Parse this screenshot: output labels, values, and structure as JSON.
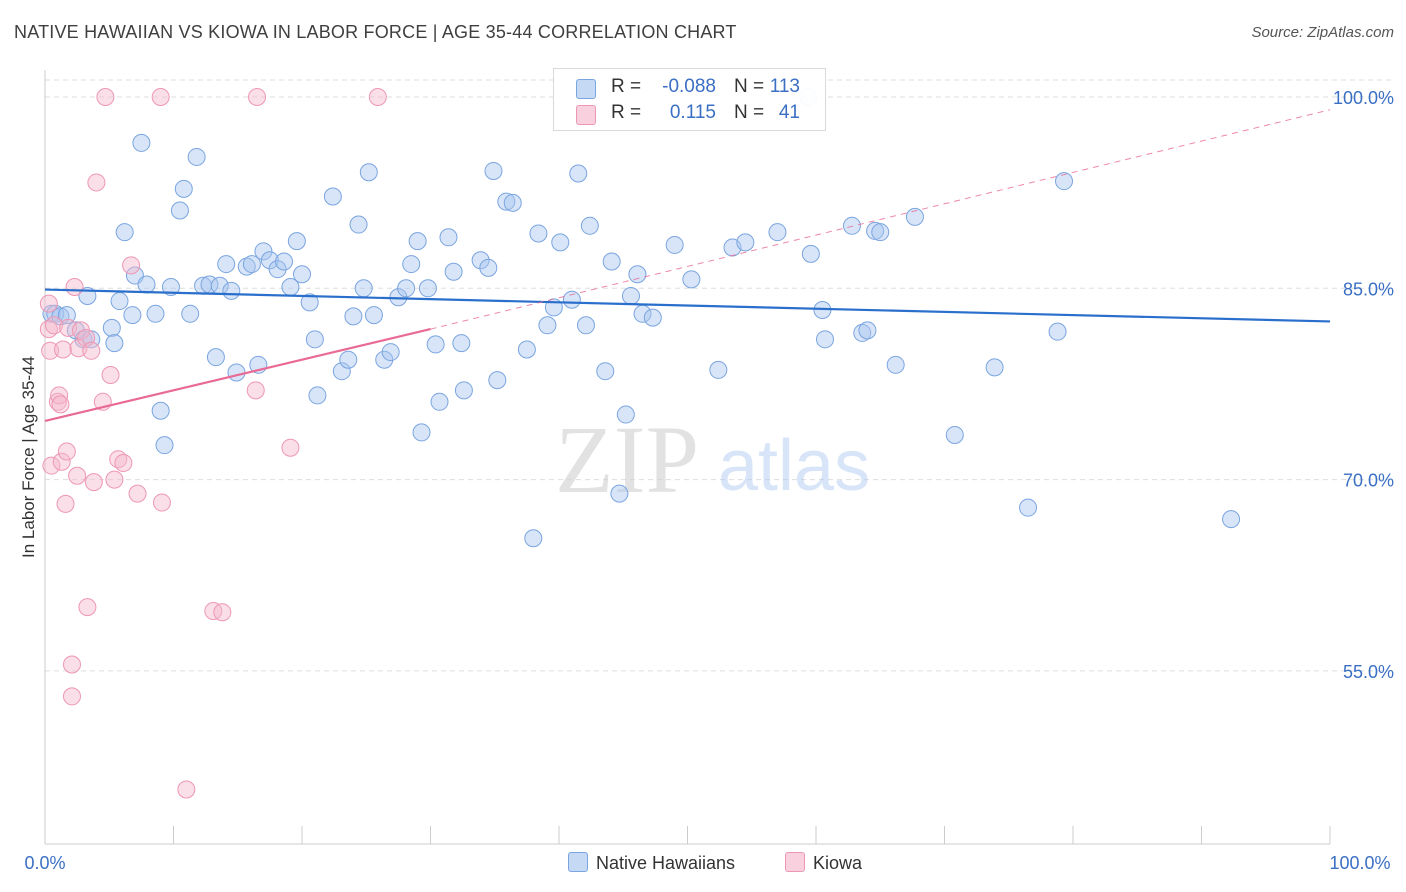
{
  "header": {
    "title": "NATIVE HAWAIIAN VS KIOWA IN LABOR FORCE | AGE 35-44 CORRELATION CHART",
    "source": "Source: ZipAtlas.com"
  },
  "watermark": {
    "zip": "ZIP",
    "atlas": "atlas"
  },
  "legend": {
    "rows": [
      {
        "r_label": "R =",
        "r_value": "-0.088",
        "n_label": "N =",
        "n_value": "113"
      },
      {
        "r_label": "R =",
        "r_value": "0.115",
        "n_label": "N =",
        "n_value": "41"
      }
    ]
  },
  "bottom_legend": {
    "series1": "Native Hawaiians",
    "series2": "Kiowa"
  },
  "colors": {
    "blue_fill": "#a9c6ef",
    "blue_stroke": "#7aa5e0",
    "blue_line": "#2a6fcb",
    "pink_fill": "#f5b8cb",
    "pink_stroke": "#ee97b3",
    "pink_line": "#e96a94",
    "axis_label": "#3a6fc4",
    "grid": "#dddddd"
  },
  "chart_data": {
    "type": "scatter",
    "title": "NATIVE HAWAIIAN VS KIOWA IN LABOR FORCE | AGE 35-44 CORRELATION CHART",
    "xlabel": "",
    "ylabel": "In Labor Force | Age 35-44",
    "xlim": [
      0,
      100
    ],
    "ylim": [
      43,
      101.5
    ],
    "x_tick_labels": [
      "0.0%",
      "100.0%"
    ],
    "y_ticks": [
      100,
      85,
      70,
      55
    ],
    "y_tick_labels": [
      "100.0%",
      "85.0%",
      "70.0%",
      "55.0%"
    ],
    "grid": true,
    "legend_position": "top-center",
    "series": [
      {
        "name": "Native Hawaiians",
        "r": -0.088,
        "n": 113,
        "trend": {
          "x": [
            0,
            100
          ],
          "y": [
            84.9,
            82.4
          ],
          "dashed": false
        },
        "points": [
          [
            0.5,
            83
          ],
          [
            0.8,
            83
          ],
          [
            1.2,
            82.8
          ],
          [
            1.7,
            82.9
          ],
          [
            2.4,
            81.7
          ],
          [
            3,
            81
          ],
          [
            3.3,
            84.4
          ],
          [
            3.6,
            81
          ],
          [
            5.2,
            81.9
          ],
          [
            5.4,
            80.7
          ],
          [
            5.8,
            84
          ],
          [
            6.2,
            89.4
          ],
          [
            6.8,
            82.9
          ],
          [
            7.0,
            86
          ],
          [
            7.5,
            96.4
          ],
          [
            7.9,
            85.3
          ],
          [
            8.6,
            83
          ],
          [
            9.0,
            75.4
          ],
          [
            9.3,
            72.7
          ],
          [
            9.8,
            85.1
          ],
          [
            10.5,
            91.1
          ],
          [
            10.8,
            92.8
          ],
          [
            11.3,
            83
          ],
          [
            11.8,
            95.3
          ],
          [
            12.3,
            85.2
          ],
          [
            12.8,
            85.3
          ],
          [
            13.3,
            79.6
          ],
          [
            13.6,
            85.2
          ],
          [
            14.1,
            86.9
          ],
          [
            14.5,
            84.8
          ],
          [
            14.9,
            78.4
          ],
          [
            15.7,
            86.7
          ],
          [
            16.1,
            86.9
          ],
          [
            16.6,
            79
          ],
          [
            17.0,
            87.9
          ],
          [
            17.5,
            87.2
          ],
          [
            18.1,
            86.5
          ],
          [
            18.6,
            87.1
          ],
          [
            19.1,
            85.1
          ],
          [
            19.6,
            88.7
          ],
          [
            20.0,
            86.1
          ],
          [
            20.6,
            83.9
          ],
          [
            21.0,
            81
          ],
          [
            21.2,
            76.6
          ],
          [
            22.4,
            92.2
          ],
          [
            23.1,
            78.5
          ],
          [
            23.6,
            79.4
          ],
          [
            24.0,
            82.8
          ],
          [
            24.4,
            90
          ],
          [
            24.8,
            85
          ],
          [
            25.2,
            94.1
          ],
          [
            25.6,
            82.9
          ],
          [
            26.4,
            79.4
          ],
          [
            26.9,
            80
          ],
          [
            27.5,
            84.3
          ],
          [
            28.1,
            85
          ],
          [
            28.5,
            86.9
          ],
          [
            29.0,
            88.7
          ],
          [
            29.3,
            73.7
          ],
          [
            29.8,
            85
          ],
          [
            30.4,
            80.6
          ],
          [
            30.7,
            76.1
          ],
          [
            31.4,
            89
          ],
          [
            31.8,
            86.3
          ],
          [
            32.4,
            80.7
          ],
          [
            32.6,
            77
          ],
          [
            33.9,
            87.2
          ],
          [
            34.5,
            86.6
          ],
          [
            34.9,
            94.2
          ],
          [
            35.2,
            77.8
          ],
          [
            35.9,
            91.8
          ],
          [
            36.4,
            91.7
          ],
          [
            37.5,
            80.2
          ],
          [
            38.0,
            65.4
          ],
          [
            38.4,
            89.3
          ],
          [
            39.1,
            82.1
          ],
          [
            39.6,
            83.5
          ],
          [
            40.1,
            88.6
          ],
          [
            41.0,
            84.1
          ],
          [
            41.5,
            94
          ],
          [
            42.1,
            82.1
          ],
          [
            42.4,
            89.9
          ],
          [
            43.6,
            78.5
          ],
          [
            44.1,
            87.1
          ],
          [
            44.7,
            68.9
          ],
          [
            45.2,
            75.1
          ],
          [
            45.6,
            84.4
          ],
          [
            46.1,
            86.1
          ],
          [
            46.5,
            83
          ],
          [
            47.3,
            82.7
          ],
          [
            49.0,
            88.4
          ],
          [
            50.3,
            85.7
          ],
          [
            52.4,
            78.6
          ],
          [
            53.5,
            88.2
          ],
          [
            54.5,
            88.6
          ],
          [
            57.0,
            89.4
          ],
          [
            59.4,
            100
          ],
          [
            59.6,
            87.7
          ],
          [
            60.5,
            83.3
          ],
          [
            60.7,
            81
          ],
          [
            62.8,
            89.9
          ],
          [
            63.6,
            81.5
          ],
          [
            64.0,
            81.7
          ],
          [
            64.6,
            89.5
          ],
          [
            65.0,
            89.4
          ],
          [
            66.2,
            79
          ],
          [
            67.7,
            90.6
          ],
          [
            70.8,
            73.5
          ],
          [
            73.9,
            78.8
          ],
          [
            76.5,
            67.8
          ],
          [
            78.8,
            81.6
          ],
          [
            79.3,
            93.4
          ],
          [
            92.3,
            66.9
          ]
        ]
      },
      {
        "name": "Kiowa",
        "r": 0.115,
        "n": 41,
        "trend": {
          "x": [
            0,
            30
          ],
          "y": [
            74.6,
            81.8
          ],
          "dashed": false
        },
        "trend_extension": {
          "x": [
            30,
            100
          ],
          "y": [
            81.8,
            99
          ],
          "dashed": true
        },
        "points": [
          [
            0.3,
            83.8
          ],
          [
            0.3,
            81.8
          ],
          [
            0.4,
            80.1
          ],
          [
            0.5,
            71.1
          ],
          [
            0.7,
            82.1
          ],
          [
            1.0,
            76.1
          ],
          [
            1.1,
            76.6
          ],
          [
            1.2,
            75.9
          ],
          [
            1.3,
            71.4
          ],
          [
            1.4,
            80.2
          ],
          [
            1.6,
            68.1
          ],
          [
            1.7,
            72.2
          ],
          [
            1.8,
            81.9
          ],
          [
            2.1,
            55.5
          ],
          [
            2.1,
            53
          ],
          [
            2.3,
            85.1
          ],
          [
            2.5,
            70.3
          ],
          [
            2.6,
            80.3
          ],
          [
            2.8,
            81.7
          ],
          [
            3.2,
            81.1
          ],
          [
            3.3,
            60
          ],
          [
            3.6,
            80.1
          ],
          [
            3.8,
            69.8
          ],
          [
            4.0,
            93.3
          ],
          [
            4.5,
            76.1
          ],
          [
            4.7,
            100
          ],
          [
            5.1,
            78.2
          ],
          [
            5.4,
            70
          ],
          [
            5.7,
            71.6
          ],
          [
            6.1,
            71.3
          ],
          [
            6.7,
            86.8
          ],
          [
            7.2,
            68.9
          ],
          [
            9.0,
            100
          ],
          [
            9.1,
            68.2
          ],
          [
            11.0,
            45.7
          ],
          [
            13.1,
            59.7
          ],
          [
            13.8,
            59.6
          ],
          [
            16.4,
            77
          ],
          [
            16.5,
            100
          ],
          [
            19.1,
            72.5
          ],
          [
            25.9,
            100
          ]
        ]
      }
    ]
  }
}
